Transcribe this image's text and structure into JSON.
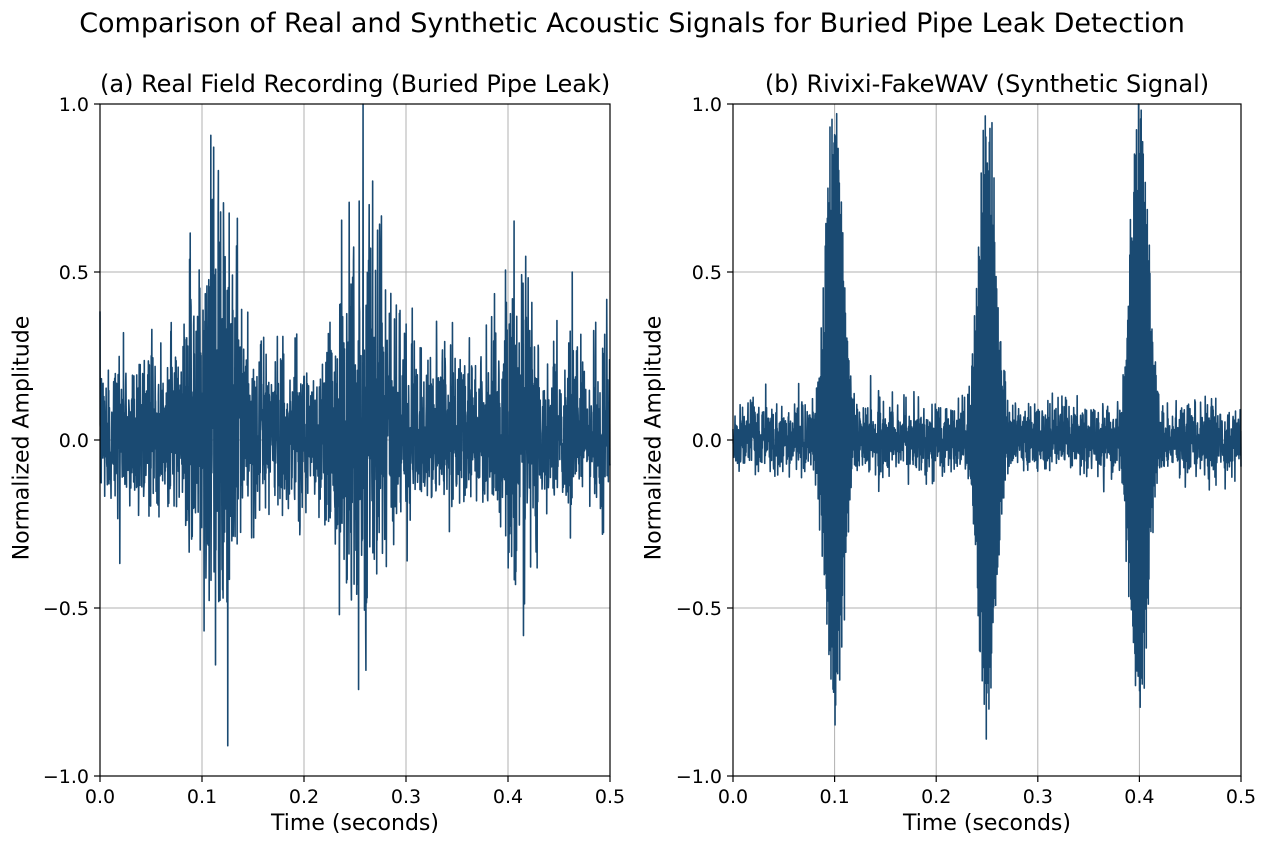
{
  "figure": {
    "title": "Comparison of Real and Synthetic Acoustic Signals for Buried Pipe Leak Detection",
    "line_color": "#1a4a72"
  },
  "chart_data": [
    {
      "type": "line",
      "title": "(a) Real Field Recording (Buried Pipe Leak)",
      "xlabel": "Time (seconds)",
      "ylabel": "Normalized Amplitude",
      "xlim": [
        0.0,
        0.5
      ],
      "ylim": [
        -1.0,
        1.0
      ],
      "xticks": [
        0.0,
        0.1,
        0.2,
        0.3,
        0.4,
        0.5
      ],
      "xtick_labels": [
        "0.0",
        "0.1",
        "0.2",
        "0.3",
        "0.4",
        "0.5"
      ],
      "yticks": [
        -1.0,
        -0.5,
        0.0,
        0.5,
        1.0
      ],
      "ytick_labels": [
        "−1.0",
        "−0.5",
        "0.0",
        "0.5",
        "1.0"
      ],
      "grid": true,
      "series": [
        {
          "description": "Noisy leak recording with irregular bursts",
          "noise_floor": 0.3,
          "sample_count": 2500,
          "bursts": [
            {
              "center": 0.115,
              "width": 0.02,
              "peak": 1.0
            },
            {
              "center": 0.258,
              "width": 0.025,
              "peak": 0.85
            },
            {
              "center": 0.412,
              "width": 0.012,
              "peak": 0.8
            }
          ],
          "min_value": -0.91,
          "max_value": 1.0
        }
      ]
    },
    {
      "type": "line",
      "title": "(b) Rivixi-FakeWAV (Synthetic Signal)",
      "xlabel": "Time (seconds)",
      "ylabel": "Normalized Amplitude",
      "xlim": [
        0.0,
        0.5
      ],
      "ylim": [
        -1.0,
        1.0
      ],
      "xticks": [
        0.0,
        0.1,
        0.2,
        0.3,
        0.4,
        0.5
      ],
      "xtick_labels": [
        "0.0",
        "0.1",
        "0.2",
        "0.3",
        "0.4",
        "0.5"
      ],
      "yticks": [
        -1.0,
        -0.5,
        0.0,
        0.5,
        1.0
      ],
      "ytick_labels": [
        "−1.0",
        "−0.5",
        "0.0",
        "0.5",
        "1.0"
      ],
      "grid": true,
      "series": [
        {
          "description": "Synthetic signal with three regular Gaussian pulses over low noise",
          "noise_floor": 0.17,
          "sample_count": 2500,
          "bursts": [
            {
              "center": 0.1,
              "width": 0.0085,
              "peak": 1.0
            },
            {
              "center": 0.25,
              "width": 0.0085,
              "peak": 1.0
            },
            {
              "center": 0.4,
              "width": 0.0085,
              "peak": 1.0
            }
          ],
          "min_value": -0.89,
          "max_value": 1.0
        }
      ]
    }
  ]
}
